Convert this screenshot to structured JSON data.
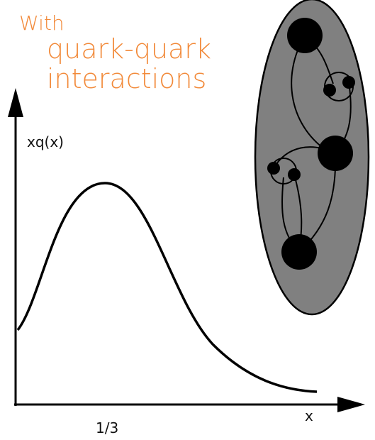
{
  "title": {
    "line1": "With",
    "line2": "quark-quark",
    "line3": "interactions"
  },
  "axes": {
    "y_label": "xq(x)",
    "x_label": "x",
    "x_tick": "1/3"
  }
}
